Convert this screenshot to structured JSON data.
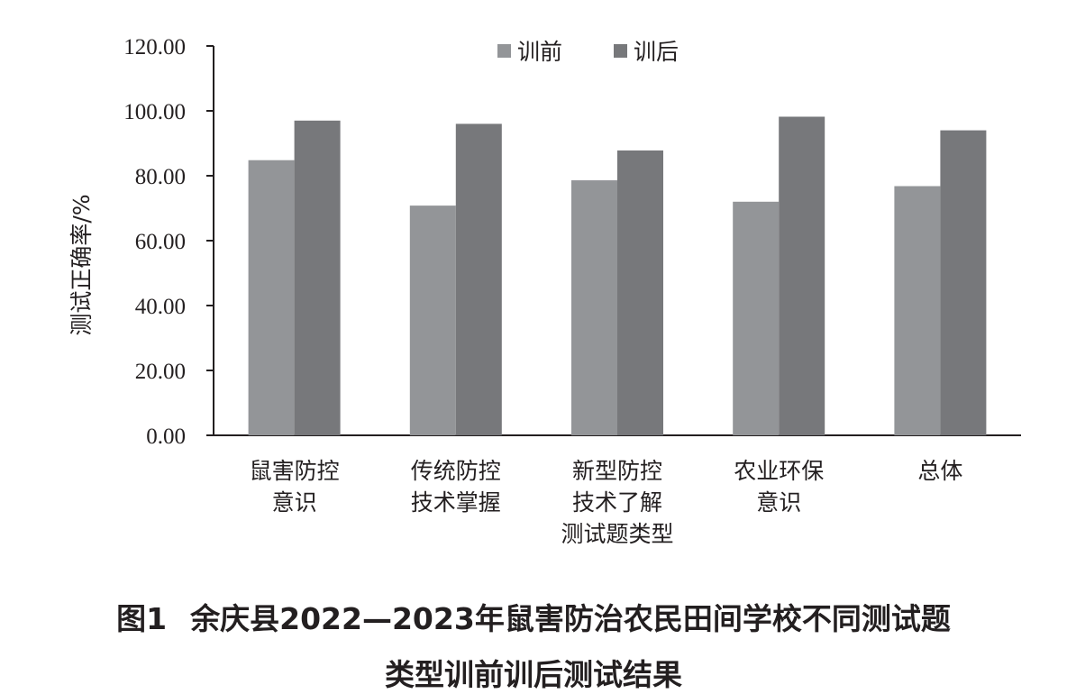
{
  "chart_data": {
    "type": "bar",
    "ylabel": "测试正确率/%",
    "ylim": [
      0,
      120
    ],
    "yticks": [
      "0.00",
      "20.00",
      "40.00",
      "60.00",
      "80.00",
      "100.00",
      "120.00"
    ],
    "categories": [
      [
        "鼠害防控",
        "意识"
      ],
      [
        "传统防控",
        "技术掌握"
      ],
      [
        "新型防控",
        "技术了解",
        "测试题类型"
      ],
      [
        "农业环保",
        "意识"
      ],
      [
        "总体"
      ]
    ],
    "series": [
      {
        "name": "训前",
        "values": [
          84.8,
          70.8,
          78.6,
          72.0,
          76.8
        ],
        "color": "#939598"
      },
      {
        "name": "训后",
        "values": [
          97.0,
          96.0,
          87.8,
          98.2,
          94.0
        ],
        "color": "#77787b"
      }
    ],
    "legend_position": "top-center",
    "grid": false
  },
  "caption": {
    "figure_number": "图1",
    "line1": "余庆县2022—2023年鼠害防治农民田间学校不同测试题",
    "line2": "类型训前训后测试结果"
  }
}
